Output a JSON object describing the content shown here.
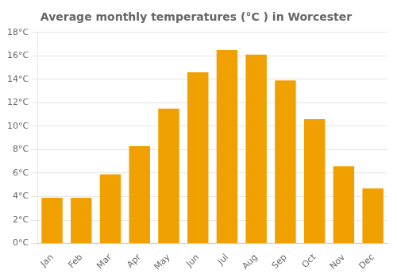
{
  "chart_data": {
    "type": "bar",
    "title": "Average monthly temperatures (°C ) in Worcester",
    "categories": [
      "Jan",
      "Feb",
      "Mar",
      "Apr",
      "May",
      "Jun",
      "Jul",
      "Aug",
      "Sep",
      "Oct",
      "Nov",
      "Dec"
    ],
    "values": [
      3.9,
      3.9,
      5.9,
      8.3,
      11.5,
      14.6,
      16.5,
      16.1,
      13.9,
      10.6,
      6.6,
      4.7
    ],
    "color": "#F0A000",
    "ylim": [
      0,
      18
    ],
    "yticks": [
      {
        "value": 0,
        "label": "0°C"
      },
      {
        "value": 2,
        "label": "2°C"
      },
      {
        "value": 4,
        "label": "4°C"
      },
      {
        "value": 6,
        "label": "6°C"
      },
      {
        "value": 8,
        "label": "8°C"
      },
      {
        "value": 10,
        "label": "10°C"
      },
      {
        "value": 12,
        "label": "12°C"
      },
      {
        "value": 14,
        "label": "14°C"
      },
      {
        "value": 16,
        "label": "16°C"
      },
      {
        "value": 18,
        "label": "18°C"
      }
    ],
    "grid": true
  }
}
